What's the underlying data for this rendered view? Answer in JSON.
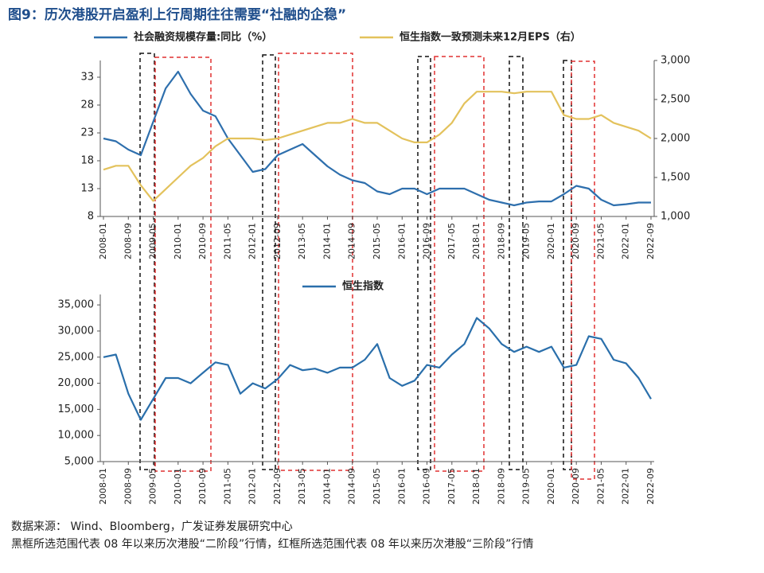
{
  "title": "图9：历次港股开启盈利上行周期往往需要“社融的企稳”",
  "source": "数据来源：  Wind、Bloomberg，广发证券发展研究中心",
  "note": "黑框所选范围代表 08 年以来历次港股“二阶段”行情，红框所选范围代表 08 年以来历次港股“三阶段”行情",
  "chart_data": [
    {
      "type": "line",
      "x": [
        "2008-01",
        "2008-05",
        "2008-09",
        "2009-01",
        "2009-05",
        "2009-09",
        "2010-01",
        "2010-05",
        "2010-09",
        "2011-01",
        "2011-05",
        "2011-09",
        "2012-01",
        "2012-05",
        "2012-09",
        "2013-01",
        "2013-05",
        "2013-09",
        "2014-01",
        "2014-05",
        "2014-09",
        "2015-01",
        "2015-05",
        "2015-09",
        "2016-01",
        "2016-05",
        "2016-09",
        "2017-01",
        "2017-05",
        "2017-09",
        "2018-01",
        "2018-05",
        "2018-09",
        "2019-01",
        "2019-05",
        "2019-09",
        "2020-01",
        "2020-05",
        "2020-09",
        "2021-01",
        "2021-05",
        "2021-09",
        "2022-01",
        "2022-05",
        "2022-09"
      ],
      "xticks": [
        "2008-01",
        "2008-09",
        "2009-05",
        "2010-01",
        "2010-09",
        "2011-05",
        "2012-01",
        "2012-09",
        "2013-05",
        "2014-01",
        "2014-09",
        "2015-05",
        "2016-01",
        "2016-09",
        "2017-05",
        "2018-01",
        "2018-09",
        "2019-05",
        "2020-01",
        "2020-09",
        "2021-05",
        "2022-01",
        "2022-09"
      ],
      "series": [
        {
          "name": "社会融资规模存量:同比（%）",
          "color": "#2e6fad",
          "values": [
            22,
            21.5,
            20,
            19,
            25,
            31,
            34,
            30,
            27,
            26,
            22,
            19,
            16,
            16.5,
            19,
            20,
            21,
            19,
            17,
            15.5,
            14.5,
            14,
            12.5,
            12,
            13,
            13,
            12,
            13,
            13,
            13,
            12,
            11,
            10.5,
            10,
            10.5,
            10.7,
            10.7,
            12,
            13.5,
            13,
            11,
            10,
            10.2,
            10.5,
            10.5
          ]
        },
        {
          "name": "恒生指数一致预测未来12月EPS（右）",
          "color": "#e3c25c",
          "axis": "y2",
          "values": [
            1600,
            1650,
            1650,
            1400,
            1200,
            1350,
            1500,
            1650,
            1750,
            1900,
            2000,
            2000,
            2000,
            1980,
            2000,
            2050,
            2100,
            2150,
            2200,
            2200,
            2250,
            2200,
            2200,
            2100,
            2000,
            1950,
            1950,
            2050,
            2200,
            2450,
            2600,
            2600,
            2600,
            2580,
            2600,
            2600,
            2600,
            2300,
            2250,
            2250,
            2300,
            2200,
            2150,
            2100,
            2000
          ]
        }
      ],
      "ylim": [
        8,
        36
      ],
      "yticks": [
        8,
        13,
        18,
        23,
        28,
        33
      ],
      "y2lim": [
        1000,
        3000
      ],
      "y2ticks": [
        {
          "value": 1000,
          "label": "1,000"
        },
        {
          "value": 1500,
          "label": "1,500"
        },
        {
          "value": 2000,
          "label": "2,000"
        },
        {
          "value": 2500,
          "label": "2,500"
        },
        {
          "value": 3000,
          "label": "3,000"
        }
      ]
    },
    {
      "type": "line",
      "x": [
        "2008-01",
        "2008-05",
        "2008-09",
        "2009-01",
        "2009-05",
        "2009-09",
        "2010-01",
        "2010-05",
        "2010-09",
        "2011-01",
        "2011-05",
        "2011-09",
        "2012-01",
        "2012-05",
        "2012-09",
        "2013-01",
        "2013-05",
        "2013-09",
        "2014-01",
        "2014-05",
        "2014-09",
        "2015-01",
        "2015-05",
        "2015-09",
        "2016-01",
        "2016-05",
        "2016-09",
        "2017-01",
        "2017-05",
        "2017-09",
        "2018-01",
        "2018-05",
        "2018-09",
        "2019-01",
        "2019-05",
        "2019-09",
        "2020-01",
        "2020-05",
        "2020-09",
        "2021-01",
        "2021-05",
        "2021-09",
        "2022-01",
        "2022-05",
        "2022-09"
      ],
      "xticks": [
        "2008-01",
        "2008-09",
        "2009-05",
        "2010-01",
        "2010-09",
        "2011-05",
        "2012-01",
        "2012-09",
        "2013-05",
        "2014-01",
        "2014-09",
        "2015-05",
        "2016-01",
        "2016-09",
        "2017-05",
        "2018-01",
        "2018-09",
        "2019-05",
        "2020-01",
        "2020-09",
        "2021-05",
        "2022-01",
        "2022-09"
      ],
      "series": [
        {
          "name": "恒生指数",
          "color": "#2a6fab",
          "values": [
            25000,
            25500,
            18000,
            13000,
            17000,
            21000,
            21000,
            20000,
            22000,
            24000,
            23500,
            18000,
            20000,
            19000,
            20800,
            23500,
            22500,
            22800,
            22000,
            23000,
            23000,
            24500,
            27500,
            21000,
            19500,
            20500,
            23500,
            23000,
            25500,
            27500,
            32500,
            30500,
            27500,
            26000,
            27000,
            26000,
            27000,
            23000,
            23500,
            29000,
            28500,
            24500,
            23800,
            21000,
            17000
          ]
        }
      ],
      "ylim": [
        5000,
        37000
      ],
      "yticks": [
        {
          "value": 5000,
          "label": "5,000"
        },
        {
          "value": 10000,
          "label": "10,000"
        },
        {
          "value": 15000,
          "label": "15,000"
        },
        {
          "value": 20000,
          "label": "20,000"
        },
        {
          "value": 25000,
          "label": "25,000"
        },
        {
          "value": 30000,
          "label": "30,000"
        },
        {
          "value": 35000,
          "label": "35,000"
        }
      ]
    }
  ]
}
